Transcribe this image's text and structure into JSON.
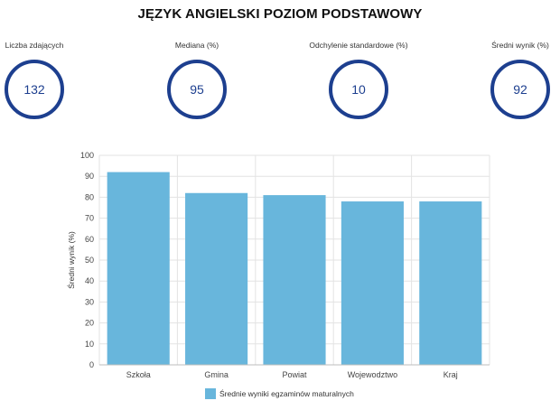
{
  "title": "JĘZYK ANGIELSKI POZIOM PODSTAWOWY",
  "stats": [
    {
      "label": "Liczba zdających",
      "value": "132"
    },
    {
      "label": "Mediana (%)",
      "value": "95"
    },
    {
      "label": "Odchylenie standardowe (%)",
      "value": "10"
    },
    {
      "label": "Średni wynik (%)",
      "value": "92"
    }
  ],
  "colors": {
    "ring": "#1d3f8f",
    "bar": "#68b6dc",
    "grid": "#e3e3e3"
  },
  "chart_data": {
    "type": "bar",
    "categories": [
      "Szkoła",
      "Gmina",
      "Powiat",
      "Wojewodztwo",
      "Kraj"
    ],
    "series": [
      {
        "name": "Średnie wyniki egzaminów maturalnych",
        "values": [
          92,
          82,
          81,
          78,
          78
        ]
      }
    ],
    "xlabel": "",
    "ylabel": "Średni wynik (%)",
    "ylim": [
      0,
      100
    ],
    "yticks": [
      0,
      10,
      20,
      30,
      40,
      50,
      60,
      70,
      80,
      90,
      100
    ],
    "grid": true,
    "legend_position": "bottom"
  }
}
